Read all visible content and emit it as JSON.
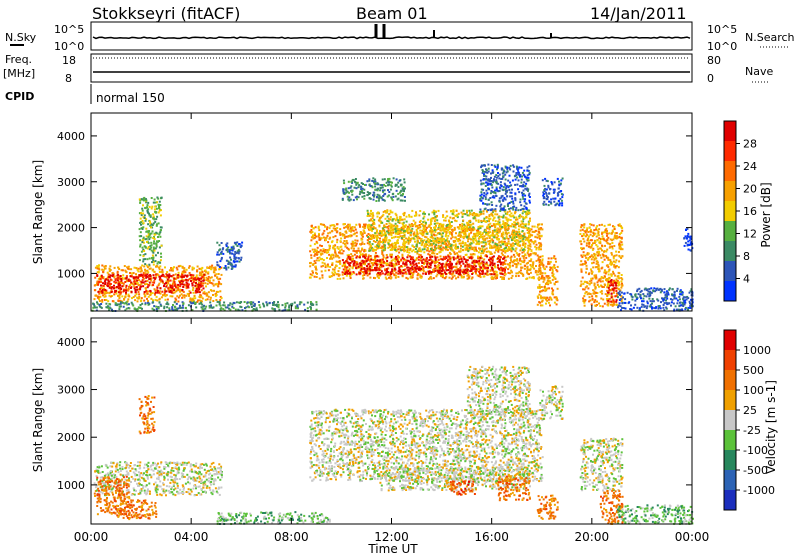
{
  "header": {
    "station": "Stokkseyri (fitACF)",
    "beam": "Beam 01",
    "date": "14/Jan/2011"
  },
  "panels": {
    "nsky": {
      "label": "N.Sky",
      "tick_top": "10^5",
      "tick_bottom": "10^0",
      "right_label": "N.Search",
      "right_tick_top": "10^5",
      "right_tick_bottom": "10^0"
    },
    "freq": {
      "label_1": "Freq.",
      "label_2": "[MHz]",
      "tick_top": "18",
      "tick_bottom": "8",
      "right_label": "Nave",
      "right_tick_top": "80",
      "right_tick_bottom": "0"
    },
    "cpid": {
      "label": "CPID",
      "value": "normal 150"
    }
  },
  "colors": {
    "power_scale": [
      "#0033ff",
      "#2d55b8",
      "#3b8a64",
      "#57b040",
      "#f2cc00",
      "#f7a000",
      "#ff6a00",
      "#ff2a00",
      "#e00000"
    ],
    "velocity_scale": [
      "#1b2ebd",
      "#2c63b5",
      "#27875d",
      "#5bc23a",
      "#c8c8c8",
      "#f0a000",
      "#f07000",
      "#f04000",
      "#e00000"
    ]
  },
  "chart_data": [
    {
      "type": "heatmap",
      "name": "power",
      "xlabel": "",
      "ylabel": "Slant Range [km]",
      "xlim": [
        0,
        24
      ],
      "ylim": [
        180,
        4500
      ],
      "x_ticks": [
        0,
        4,
        8,
        12,
        16,
        20,
        24
      ],
      "y_ticks": [
        1000,
        2000,
        3000,
        4000
      ],
      "colorbar": {
        "label": "Power [dB]",
        "ticks": [
          "28",
          "24",
          "20",
          "16",
          "12",
          "8",
          "4"
        ]
      },
      "regions": [
        {
          "t0": 0.1,
          "t1": 5.2,
          "r0": 400,
          "r1": 1200,
          "level": 5
        },
        {
          "t0": 0.2,
          "t1": 4.5,
          "r0": 600,
          "r1": 1000,
          "level": 8
        },
        {
          "t0": 1.9,
          "t1": 2.8,
          "r0": 1200,
          "r1": 2700,
          "level": 3
        },
        {
          "t0": 5.0,
          "t1": 6.0,
          "r0": 1100,
          "r1": 1700,
          "level": 1
        },
        {
          "t0": 0.0,
          "t1": 9.0,
          "r0": 200,
          "r1": 400,
          "level": 2
        },
        {
          "t0": 8.7,
          "t1": 18.0,
          "r0": 900,
          "r1": 2100,
          "level": 5
        },
        {
          "t0": 10.0,
          "t1": 16.5,
          "r0": 1000,
          "r1": 1400,
          "level": 8
        },
        {
          "t0": 11.0,
          "t1": 17.5,
          "r0": 1500,
          "r1": 2400,
          "level": 4
        },
        {
          "t0": 10.0,
          "t1": 12.5,
          "r0": 2600,
          "r1": 3100,
          "level": 2
        },
        {
          "t0": 15.5,
          "t1": 17.5,
          "r0": 2400,
          "r1": 3400,
          "level": 1
        },
        {
          "t0": 17.8,
          "t1": 18.6,
          "r0": 300,
          "r1": 1400,
          "level": 5
        },
        {
          "t0": 18.0,
          "t1": 18.8,
          "r0": 2500,
          "r1": 3100,
          "level": 1
        },
        {
          "t0": 19.5,
          "t1": 21.2,
          "r0": 300,
          "r1": 2100,
          "level": 5
        },
        {
          "t0": 20.6,
          "t1": 21.0,
          "r0": 400,
          "r1": 900,
          "level": 8
        },
        {
          "t0": 21.0,
          "t1": 24.0,
          "r0": 200,
          "r1": 700,
          "level": 1
        },
        {
          "t0": 23.6,
          "t1": 24.0,
          "r0": 1500,
          "r1": 2000,
          "level": 0
        }
      ]
    },
    {
      "type": "heatmap",
      "name": "velocity",
      "xlabel": "Time UT",
      "ylabel": "Slant Range [km]",
      "xlim": [
        0,
        24
      ],
      "ylim": [
        180,
        4500
      ],
      "x_ticks": [
        0,
        4,
        8,
        12,
        16,
        20,
        24
      ],
      "x_tick_labels": [
        "00:00",
        "04:00",
        "08:00",
        "12:00",
        "16:00",
        "20:00",
        "00:00"
      ],
      "y_ticks": [
        1000,
        2000,
        3000,
        4000
      ],
      "colorbar": {
        "label": "Velocity [m s-1]",
        "ticks": [
          "1000",
          "500",
          "100",
          "25",
          "-25",
          "-100",
          "-500",
          "-1000"
        ]
      },
      "regions": [
        {
          "t0": 0.1,
          "t1": 5.2,
          "r0": 800,
          "r1": 1500,
          "level": 4
        },
        {
          "t0": 0.1,
          "t1": 1.5,
          "r0": 400,
          "r1": 1200,
          "level": 6
        },
        {
          "t0": 1.0,
          "t1": 2.6,
          "r0": 300,
          "r1": 700,
          "level": 6
        },
        {
          "t0": 1.9,
          "t1": 2.5,
          "r0": 2100,
          "r1": 2900,
          "level": 6
        },
        {
          "t0": 5.0,
          "t1": 9.5,
          "r0": 200,
          "r1": 450,
          "level": 3
        },
        {
          "t0": 8.7,
          "t1": 18.0,
          "r0": 1100,
          "r1": 2600,
          "level": 4
        },
        {
          "t0": 11.5,
          "t1": 17.5,
          "r0": 900,
          "r1": 1400,
          "level": 4
        },
        {
          "t0": 14.3,
          "t1": 15.3,
          "r0": 800,
          "r1": 1100,
          "level": 7
        },
        {
          "t0": 16.2,
          "t1": 17.5,
          "r0": 700,
          "r1": 1200,
          "level": 6
        },
        {
          "t0": 15.0,
          "t1": 17.5,
          "r0": 2500,
          "r1": 3500,
          "level": 4
        },
        {
          "t0": 17.8,
          "t1": 18.6,
          "r0": 300,
          "r1": 800,
          "level": 6
        },
        {
          "t0": 17.9,
          "t1": 18.8,
          "r0": 2400,
          "r1": 3100,
          "level": 4
        },
        {
          "t0": 19.5,
          "t1": 21.2,
          "r0": 900,
          "r1": 2000,
          "level": 4
        },
        {
          "t0": 20.3,
          "t1": 21.2,
          "r0": 200,
          "r1": 900,
          "level": 6
        },
        {
          "t0": 21.0,
          "t1": 24.0,
          "r0": 200,
          "r1": 600,
          "level": 3
        }
      ]
    }
  ]
}
